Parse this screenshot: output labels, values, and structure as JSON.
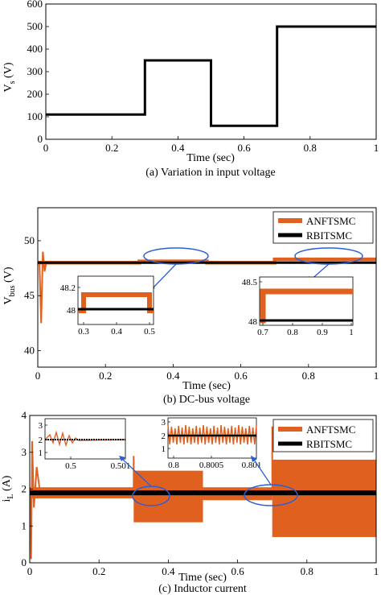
{
  "chart_data": [
    {
      "type": "line",
      "caption": "(a) Variation in input voltage",
      "xlabel": "Time (sec)",
      "ylabel": "V_s (V)",
      "xlim": [
        0,
        1
      ],
      "ylim": [
        0,
        600
      ],
      "xticks": [
        "0",
        "0.2",
        "0.4",
        "0.6",
        "0.8",
        "1"
      ],
      "yticks": [
        "0",
        "100",
        "200",
        "300",
        "400",
        "500",
        "600"
      ],
      "grid": false,
      "series": [
        {
          "name": "",
          "color": "#000000",
          "x": [
            0,
            0.3,
            0.3,
            0.5,
            0.5,
            0.7,
            0.7,
            1.0
          ],
          "y": [
            110,
            110,
            350,
            350,
            60,
            60,
            500,
            500
          ]
        }
      ]
    },
    {
      "type": "line",
      "caption": "(b) DC-bus voltage",
      "xlabel": "Time (sec)",
      "ylabel": "V_bus (V)",
      "xlim": [
        0,
        1
      ],
      "ylim": [
        38.5,
        53
      ],
      "xticks": [
        "0",
        "0.2",
        "0.4",
        "0.6",
        "0.8",
        "1"
      ],
      "yticks": [
        "40",
        "45",
        "50"
      ],
      "legend_position": "top-right",
      "series": [
        {
          "name": "ANFTSMC",
          "color": "#E0611F",
          "x": [
            0,
            0.3,
            0.5,
            0.7,
            1.0
          ],
          "y": [
            48.0,
            48.15,
            48.0,
            48.35,
            48.35
          ]
        },
        {
          "name": "RBITSMC",
          "color": "#000000",
          "x": [
            0,
            1.0
          ],
          "y": [
            48.0,
            48.0
          ]
        }
      ],
      "insets": [
        {
          "xticks": [
            "0.3",
            "0.4",
            "0.5"
          ],
          "yticks": [
            "48",
            "48.2"
          ]
        },
        {
          "xticks": [
            "0.7",
            "0.8",
            "0.9",
            "1"
          ],
          "yticks": [
            "48",
            "48.5"
          ]
        }
      ]
    },
    {
      "type": "line",
      "caption": "(c) Inductor current",
      "xlabel": "Time (sec)",
      "ylabel": "i_L (A)",
      "xlim": [
        0,
        1
      ],
      "ylim": [
        0,
        4
      ],
      "xticks": [
        "0",
        "0.2",
        "0.4",
        "0.6",
        "0.8",
        "1"
      ],
      "yticks": [
        "0",
        "1",
        "2",
        "3",
        "4"
      ],
      "legend_position": "top-right",
      "series": [
        {
          "name": "ANFTSMC",
          "color": "#E0611F",
          "segments": [
            {
              "x0": 0.0,
              "x1": 0.3,
              "lo": 1.75,
              "hi": 2.05
            },
            {
              "x0": 0.3,
              "x1": 0.5,
              "lo": 1.1,
              "hi": 2.5
            },
            {
              "x0": 0.5,
              "x1": 0.7,
              "lo": 1.7,
              "hi": 2.05
            },
            {
              "x0": 0.7,
              "x1": 1.0,
              "lo": 0.7,
              "hi": 2.8
            }
          ]
        },
        {
          "name": "RBITSMC",
          "color": "#000000",
          "x": [
            0,
            1.0
          ],
          "y": [
            1.9,
            1.9
          ]
        }
      ],
      "insets": [
        {
          "xticks": [
            "0.5",
            "0.501"
          ],
          "yticks": [
            "1",
            "2",
            "3"
          ]
        },
        {
          "xticks": [
            "0.8",
            "0.8005",
            "0.801"
          ],
          "yticks": [
            "1",
            "2",
            "3"
          ]
        }
      ]
    }
  ]
}
